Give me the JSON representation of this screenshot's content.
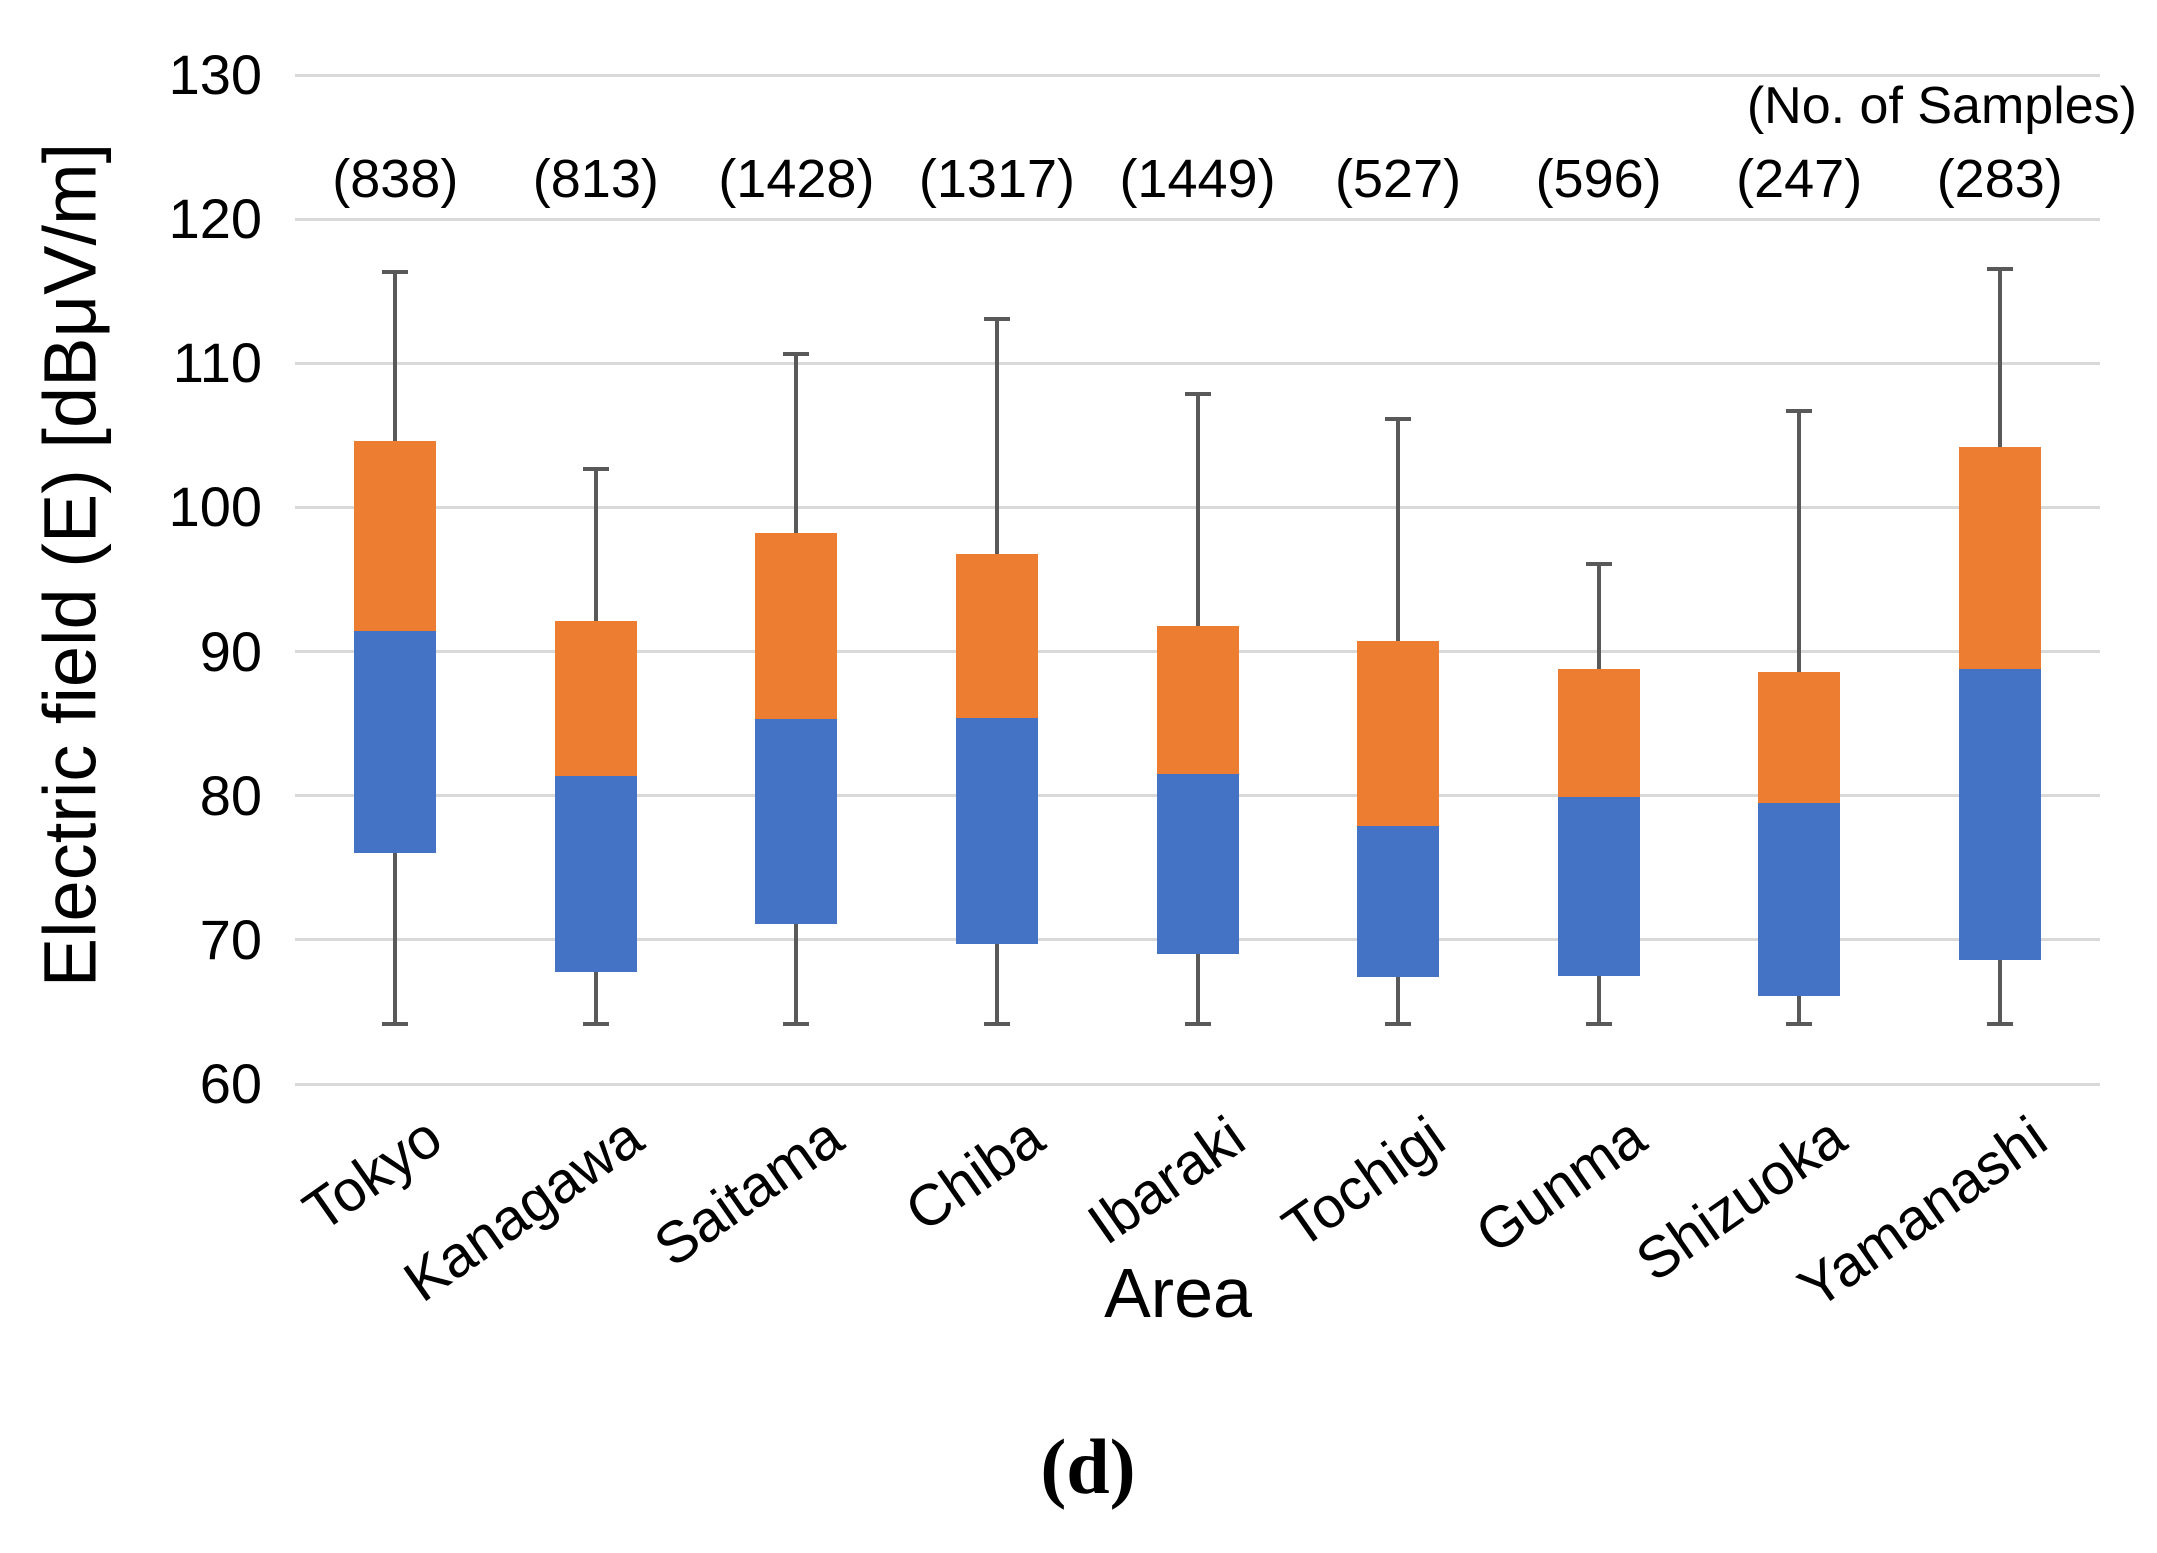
{
  "chart_data": {
    "type": "box",
    "title": "",
    "xlabel": "Area",
    "ylabel": "Electric field (E) [dBμV/m]",
    "samples_label": "(No. of Samples)",
    "caption": "(d)",
    "ylim": [
      60,
      130
    ],
    "yticks": [
      130,
      120,
      110,
      100,
      90,
      80,
      70,
      60
    ],
    "grid": true,
    "legend": "none",
    "colors": {
      "upper_box": "#ED7D31",
      "lower_box": "#4472C4",
      "whisker": "#595959",
      "gridline": "#D9D9D9",
      "text": "#000000"
    },
    "categories": [
      "Tokyo",
      "Kanagawa",
      "Saitama",
      "Chiba",
      "Ibaraki",
      "Tochigi",
      "Gunma",
      "Shizuoka",
      "Yamanashi"
    ],
    "series": [
      {
        "area": "Tokyo",
        "n": 838,
        "n_label": "(838)",
        "whisker_low": 64.0,
        "q1": 76.0,
        "median": 91.4,
        "q3": 104.6,
        "whisker_high": 116.5
      },
      {
        "area": "Kanagawa",
        "n": 813,
        "n_label": "(813)",
        "whisker_low": 64.0,
        "q1": 67.8,
        "median": 81.4,
        "q3": 92.1,
        "whisker_high": 102.8
      },
      {
        "area": "Saitama",
        "n": 1428,
        "n_label": "(1428)",
        "whisker_low": 64.0,
        "q1": 71.1,
        "median": 85.3,
        "q3": 98.2,
        "whisker_high": 110.8
      },
      {
        "area": "Chiba",
        "n": 1317,
        "n_label": "(1317)",
        "whisker_low": 64.0,
        "q1": 69.7,
        "median": 85.4,
        "q3": 96.8,
        "whisker_high": 113.2
      },
      {
        "area": "Ibaraki",
        "n": 1449,
        "n_label": "(1449)",
        "whisker_low": 64.0,
        "q1": 69.0,
        "median": 81.5,
        "q3": 91.8,
        "whisker_high": 108.0
      },
      {
        "area": "Tochigi",
        "n": 527,
        "n_label": "(527)",
        "whisker_low": 64.0,
        "q1": 67.4,
        "median": 77.9,
        "q3": 90.7,
        "whisker_high": 106.3
      },
      {
        "area": "Gunma",
        "n": 596,
        "n_label": "(596)",
        "whisker_low": 64.0,
        "q1": 67.5,
        "median": 79.9,
        "q3": 88.8,
        "whisker_high": 96.2
      },
      {
        "area": "Shizuoka",
        "n": 247,
        "n_label": "(247)",
        "whisker_low": 64.0,
        "q1": 66.1,
        "median": 79.5,
        "q3": 88.6,
        "whisker_high": 106.8
      },
      {
        "area": "Yamanashi",
        "n": 283,
        "n_label": "(283)",
        "whisker_low": 64.0,
        "q1": 68.6,
        "median": 88.8,
        "q3": 104.2,
        "whisker_high": 116.7
      }
    ]
  }
}
